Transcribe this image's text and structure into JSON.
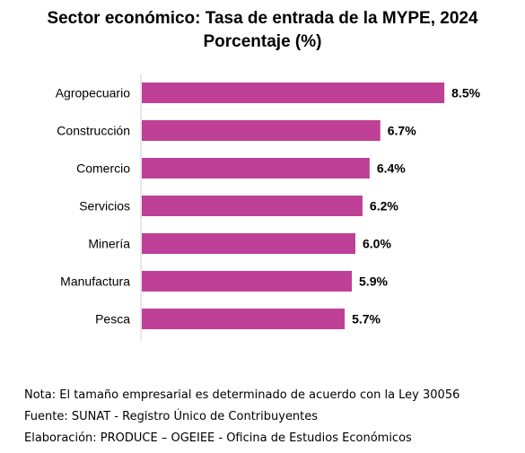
{
  "chart_data": {
    "type": "bar",
    "orientation": "horizontal",
    "title": "Sector económico: Tasa de entrada de la MYPE, 2024",
    "subtitle": "Porcentaje (%)",
    "categories": [
      "Agropecuario",
      "Construcción",
      "Comercio",
      "Servicios",
      "Minería",
      "Manufactura",
      "Pesca"
    ],
    "values": [
      8.5,
      6.7,
      6.4,
      6.2,
      6.0,
      5.9,
      5.7
    ],
    "data_labels": [
      "8.5%",
      "6.7%",
      "6.4%",
      "6.2%",
      "6.0%",
      "5.9%",
      "5.7%"
    ],
    "xlim": [
      0,
      9.0
    ],
    "bar_color": "#bf4097",
    "grid": false,
    "legend": "none"
  },
  "notes": {
    "nota": "Nota: El tamaño empresarial es determinado de acuerdo con la Ley 30056",
    "fuente": "Fuente: SUNAT - Registro Único de Contribuyentes",
    "elaboracion": "Elaboración: PRODUCE – OGEIEE - Oficina de Estudios Económicos"
  }
}
